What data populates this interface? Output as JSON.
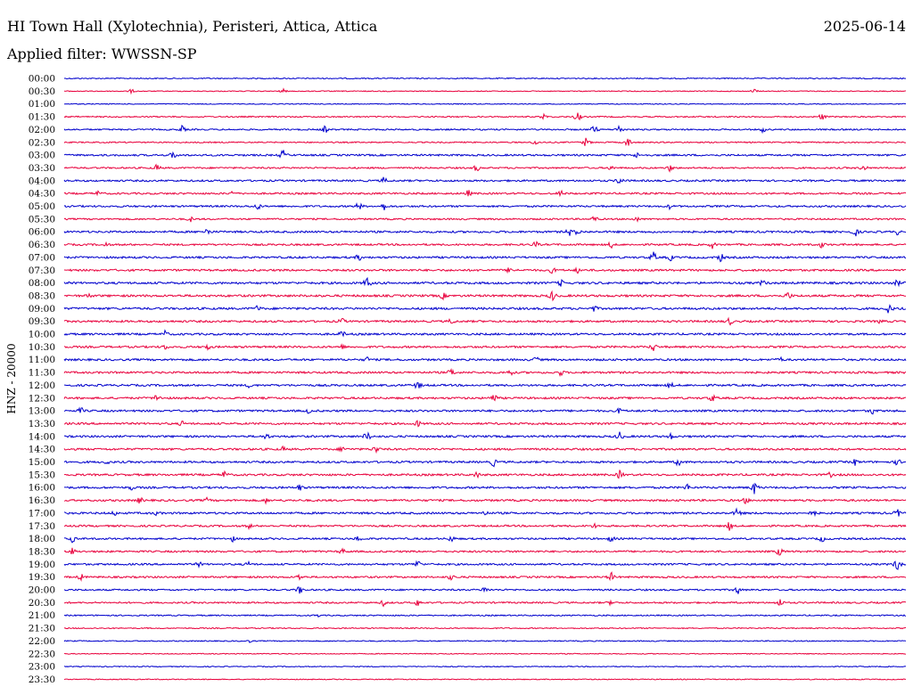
{
  "header": {
    "station": "HI Town Hall (Xylotechnia), Peristeri, Attica, Attica",
    "date": "2025-06-14",
    "filter_label": "Applied filter: WWSSN-SP"
  },
  "y_axis_label": "HNZ - 20000",
  "colors": {
    "blue": "#0000cc",
    "red": "#e8003c",
    "background": "#ffffff"
  },
  "chart_data": {
    "type": "line",
    "title": "HI Town Hall (Xylotechnia), Peristeri, Attica, Attica",
    "subtitle": "Applied filter: WWSSN-SP",
    "ylabel": "HNZ - 20000",
    "xlabel": "",
    "grid": false,
    "legend": "none",
    "series_color_cycle": [
      "blue",
      "red"
    ],
    "categories": [
      "00:00",
      "00:30",
      "01:00",
      "01:30",
      "02:00",
      "02:30",
      "03:00",
      "03:30",
      "04:00",
      "04:30",
      "05:00",
      "05:30",
      "06:00",
      "06:30",
      "07:00",
      "07:30",
      "08:00",
      "08:30",
      "09:00",
      "09:30",
      "10:00",
      "10:30",
      "11:00",
      "11:30",
      "12:00",
      "12:30",
      "13:00",
      "13:30",
      "14:00",
      "14:30",
      "15:00",
      "15:30",
      "16:00",
      "16:30",
      "17:00",
      "17:30",
      "18:00",
      "18:30",
      "19:00",
      "19:30",
      "20:00",
      "20:30",
      "21:00",
      "21:30",
      "22:00",
      "22:30",
      "23:00",
      "23:30"
    ],
    "trace_noise_level": [
      0.6,
      0.5,
      0.5,
      0.7,
      0.8,
      0.7,
      1.0,
      0.9,
      1.0,
      1.0,
      1.0,
      0.9,
      1.1,
      1.0,
      1.1,
      1.1,
      1.2,
      1.2,
      1.2,
      1.1,
      1.1,
      1.1,
      1.1,
      1.1,
      1.1,
      1.1,
      1.1,
      1.1,
      1.1,
      1.1,
      1.1,
      1.1,
      1.1,
      1.1,
      1.1,
      1.0,
      1.0,
      1.0,
      1.0,
      1.0,
      0.9,
      0.9,
      0.7,
      0.6,
      0.6,
      0.5,
      0.5,
      0.5
    ],
    "events": [
      {
        "row": 1,
        "t": 0.08,
        "amp": 3
      },
      {
        "row": 1,
        "t": 0.26,
        "amp": 3
      },
      {
        "row": 1,
        "t": 0.82,
        "amp": 3
      },
      {
        "row": 3,
        "t": 0.57,
        "amp": 4
      },
      {
        "row": 3,
        "t": 0.61,
        "amp": 6
      },
      {
        "row": 3,
        "t": 0.9,
        "amp": 5
      },
      {
        "row": 4,
        "t": 0.14,
        "amp": 5
      },
      {
        "row": 4,
        "t": 0.31,
        "amp": 5
      },
      {
        "row": 4,
        "t": 0.63,
        "amp": 6
      },
      {
        "row": 4,
        "t": 0.66,
        "amp": 6
      },
      {
        "row": 4,
        "t": 0.83,
        "amp": 4
      },
      {
        "row": 5,
        "t": 0.56,
        "amp": 4
      },
      {
        "row": 5,
        "t": 0.62,
        "amp": 6
      },
      {
        "row": 5,
        "t": 0.67,
        "amp": 6
      },
      {
        "row": 6,
        "t": 0.13,
        "amp": 6
      },
      {
        "row": 6,
        "t": 0.26,
        "amp": 7
      },
      {
        "row": 6,
        "t": 0.68,
        "amp": 4
      },
      {
        "row": 7,
        "t": 0.11,
        "amp": 5
      },
      {
        "row": 7,
        "t": 0.49,
        "amp": 5
      },
      {
        "row": 7,
        "t": 0.65,
        "amp": 4
      },
      {
        "row": 7,
        "t": 0.72,
        "amp": 5
      },
      {
        "row": 7,
        "t": 0.95,
        "amp": 5
      },
      {
        "row": 8,
        "t": 0.38,
        "amp": 5
      },
      {
        "row": 8,
        "t": 0.66,
        "amp": 6
      },
      {
        "row": 9,
        "t": 0.04,
        "amp": 4
      },
      {
        "row": 9,
        "t": 0.2,
        "amp": 4
      },
      {
        "row": 9,
        "t": 0.48,
        "amp": 5
      },
      {
        "row": 9,
        "t": 0.59,
        "amp": 5
      },
      {
        "row": 10,
        "t": 0.23,
        "amp": 5
      },
      {
        "row": 10,
        "t": 0.35,
        "amp": 6
      },
      {
        "row": 10,
        "t": 0.38,
        "amp": 5
      },
      {
        "row": 10,
        "t": 0.72,
        "amp": 4
      },
      {
        "row": 11,
        "t": 0.15,
        "amp": 4
      },
      {
        "row": 11,
        "t": 0.63,
        "amp": 5
      },
      {
        "row": 11,
        "t": 0.68,
        "amp": 4
      },
      {
        "row": 12,
        "t": 0.17,
        "amp": 6
      },
      {
        "row": 12,
        "t": 0.6,
        "amp": 6
      },
      {
        "row": 12,
        "t": 0.61,
        "amp": 5
      },
      {
        "row": 12,
        "t": 0.94,
        "amp": 6
      },
      {
        "row": 12,
        "t": 0.99,
        "amp": 4
      },
      {
        "row": 13,
        "t": 0.05,
        "amp": 4
      },
      {
        "row": 13,
        "t": 0.56,
        "amp": 5
      },
      {
        "row": 13,
        "t": 0.65,
        "amp": 5
      },
      {
        "row": 13,
        "t": 0.77,
        "amp": 5
      },
      {
        "row": 13,
        "t": 0.9,
        "amp": 5
      },
      {
        "row": 14,
        "t": 0.35,
        "amp": 5
      },
      {
        "row": 14,
        "t": 0.7,
        "amp": 7
      },
      {
        "row": 14,
        "t": 0.72,
        "amp": 5
      },
      {
        "row": 14,
        "t": 0.78,
        "amp": 6
      },
      {
        "row": 15,
        "t": 0.53,
        "amp": 6
      },
      {
        "row": 15,
        "t": 0.58,
        "amp": 5
      },
      {
        "row": 15,
        "t": 0.61,
        "amp": 4
      },
      {
        "row": 16,
        "t": 0.36,
        "amp": 8
      },
      {
        "row": 16,
        "t": 0.59,
        "amp": 5
      },
      {
        "row": 16,
        "t": 0.83,
        "amp": 5
      },
      {
        "row": 16,
        "t": 0.99,
        "amp": 5
      },
      {
        "row": 17,
        "t": 0.03,
        "amp": 4
      },
      {
        "row": 17,
        "t": 0.45,
        "amp": 5
      },
      {
        "row": 17,
        "t": 0.58,
        "amp": 7
      },
      {
        "row": 17,
        "t": 0.86,
        "amp": 6
      },
      {
        "row": 18,
        "t": 0.23,
        "amp": 5
      },
      {
        "row": 18,
        "t": 0.63,
        "amp": 5
      },
      {
        "row": 18,
        "t": 0.98,
        "amp": 7
      },
      {
        "row": 19,
        "t": 0.33,
        "amp": 5
      },
      {
        "row": 19,
        "t": 0.46,
        "amp": 5
      },
      {
        "row": 19,
        "t": 0.79,
        "amp": 6
      },
      {
        "row": 19,
        "t": 0.97,
        "amp": 4
      },
      {
        "row": 20,
        "t": 0.12,
        "amp": 5
      },
      {
        "row": 20,
        "t": 0.33,
        "amp": 5
      },
      {
        "row": 21,
        "t": 0.12,
        "amp": 4
      },
      {
        "row": 21,
        "t": 0.17,
        "amp": 5
      },
      {
        "row": 21,
        "t": 0.33,
        "amp": 4
      },
      {
        "row": 21,
        "t": 0.7,
        "amp": 6
      },
      {
        "row": 22,
        "t": 0.36,
        "amp": 4
      },
      {
        "row": 22,
        "t": 0.56,
        "amp": 5
      },
      {
        "row": 22,
        "t": 0.85,
        "amp": 5
      },
      {
        "row": 23,
        "t": 0.46,
        "amp": 6
      },
      {
        "row": 23,
        "t": 0.53,
        "amp": 5
      },
      {
        "row": 23,
        "t": 0.59,
        "amp": 5
      },
      {
        "row": 24,
        "t": 0.22,
        "amp": 4
      },
      {
        "row": 24,
        "t": 0.42,
        "amp": 6
      },
      {
        "row": 24,
        "t": 0.72,
        "amp": 5
      },
      {
        "row": 25,
        "t": 0.11,
        "amp": 6
      },
      {
        "row": 25,
        "t": 0.51,
        "amp": 7
      },
      {
        "row": 25,
        "t": 0.77,
        "amp": 6
      },
      {
        "row": 26,
        "t": 0.02,
        "amp": 5
      },
      {
        "row": 26,
        "t": 0.29,
        "amp": 4
      },
      {
        "row": 26,
        "t": 0.66,
        "amp": 5
      },
      {
        "row": 26,
        "t": 0.96,
        "amp": 5
      },
      {
        "row": 27,
        "t": 0.14,
        "amp": 4
      },
      {
        "row": 27,
        "t": 0.42,
        "amp": 5
      },
      {
        "row": 28,
        "t": 0.24,
        "amp": 5
      },
      {
        "row": 28,
        "t": 0.36,
        "amp": 7
      },
      {
        "row": 28,
        "t": 0.66,
        "amp": 6
      },
      {
        "row": 28,
        "t": 0.72,
        "amp": 5
      },
      {
        "row": 29,
        "t": 0.26,
        "amp": 4
      },
      {
        "row": 29,
        "t": 0.33,
        "amp": 5
      },
      {
        "row": 29,
        "t": 0.37,
        "amp": 6
      },
      {
        "row": 30,
        "t": 0.05,
        "amp": 4
      },
      {
        "row": 30,
        "t": 0.51,
        "amp": 6
      },
      {
        "row": 30,
        "t": 0.73,
        "amp": 6
      },
      {
        "row": 30,
        "t": 0.94,
        "amp": 5
      },
      {
        "row": 30,
        "t": 0.99,
        "amp": 5
      },
      {
        "row": 31,
        "t": 0.19,
        "amp": 6
      },
      {
        "row": 31,
        "t": 0.49,
        "amp": 5
      },
      {
        "row": 31,
        "t": 0.66,
        "amp": 6
      },
      {
        "row": 31,
        "t": 0.91,
        "amp": 4
      },
      {
        "row": 32,
        "t": 0.08,
        "amp": 4
      },
      {
        "row": 32,
        "t": 0.28,
        "amp": 5
      },
      {
        "row": 32,
        "t": 0.74,
        "amp": 5
      },
      {
        "row": 32,
        "t": 0.82,
        "amp": 8
      },
      {
        "row": 33,
        "t": 0.09,
        "amp": 5
      },
      {
        "row": 33,
        "t": 0.17,
        "amp": 4
      },
      {
        "row": 33,
        "t": 0.24,
        "amp": 4
      },
      {
        "row": 33,
        "t": 0.81,
        "amp": 5
      },
      {
        "row": 34,
        "t": 0.06,
        "amp": 4
      },
      {
        "row": 34,
        "t": 0.11,
        "amp": 4
      },
      {
        "row": 34,
        "t": 0.5,
        "amp": 4
      },
      {
        "row": 34,
        "t": 0.8,
        "amp": 7
      },
      {
        "row": 34,
        "t": 0.89,
        "amp": 5
      },
      {
        "row": 34,
        "t": 0.99,
        "amp": 6
      },
      {
        "row": 35,
        "t": 0.22,
        "amp": 4
      },
      {
        "row": 35,
        "t": 0.63,
        "amp": 4
      },
      {
        "row": 35,
        "t": 0.79,
        "amp": 6
      },
      {
        "row": 36,
        "t": 0.01,
        "amp": 5
      },
      {
        "row": 36,
        "t": 0.2,
        "amp": 4
      },
      {
        "row": 36,
        "t": 0.35,
        "amp": 5
      },
      {
        "row": 36,
        "t": 0.46,
        "amp": 5
      },
      {
        "row": 36,
        "t": 0.65,
        "amp": 5
      },
      {
        "row": 36,
        "t": 0.9,
        "amp": 5
      },
      {
        "row": 37,
        "t": 0.01,
        "amp": 5
      },
      {
        "row": 37,
        "t": 0.33,
        "amp": 5
      },
      {
        "row": 37,
        "t": 0.85,
        "amp": 6
      },
      {
        "row": 38,
        "t": 0.16,
        "amp": 4
      },
      {
        "row": 38,
        "t": 0.22,
        "amp": 5
      },
      {
        "row": 38,
        "t": 0.42,
        "amp": 6
      },
      {
        "row": 38,
        "t": 0.99,
        "amp": 8
      },
      {
        "row": 39,
        "t": 0.02,
        "amp": 5
      },
      {
        "row": 39,
        "t": 0.28,
        "amp": 5
      },
      {
        "row": 39,
        "t": 0.46,
        "amp": 5
      },
      {
        "row": 39,
        "t": 0.65,
        "amp": 6
      },
      {
        "row": 40,
        "t": 0.28,
        "amp": 6
      },
      {
        "row": 40,
        "t": 0.5,
        "amp": 5
      },
      {
        "row": 40,
        "t": 0.8,
        "amp": 6
      },
      {
        "row": 41,
        "t": 0.38,
        "amp": 5
      },
      {
        "row": 41,
        "t": 0.42,
        "amp": 5
      },
      {
        "row": 41,
        "t": 0.65,
        "amp": 4
      },
      {
        "row": 41,
        "t": 0.85,
        "amp": 6
      },
      {
        "row": 42,
        "t": 0.3,
        "amp": 3
      },
      {
        "row": 44,
        "t": 0.22,
        "amp": 2
      }
    ]
  }
}
